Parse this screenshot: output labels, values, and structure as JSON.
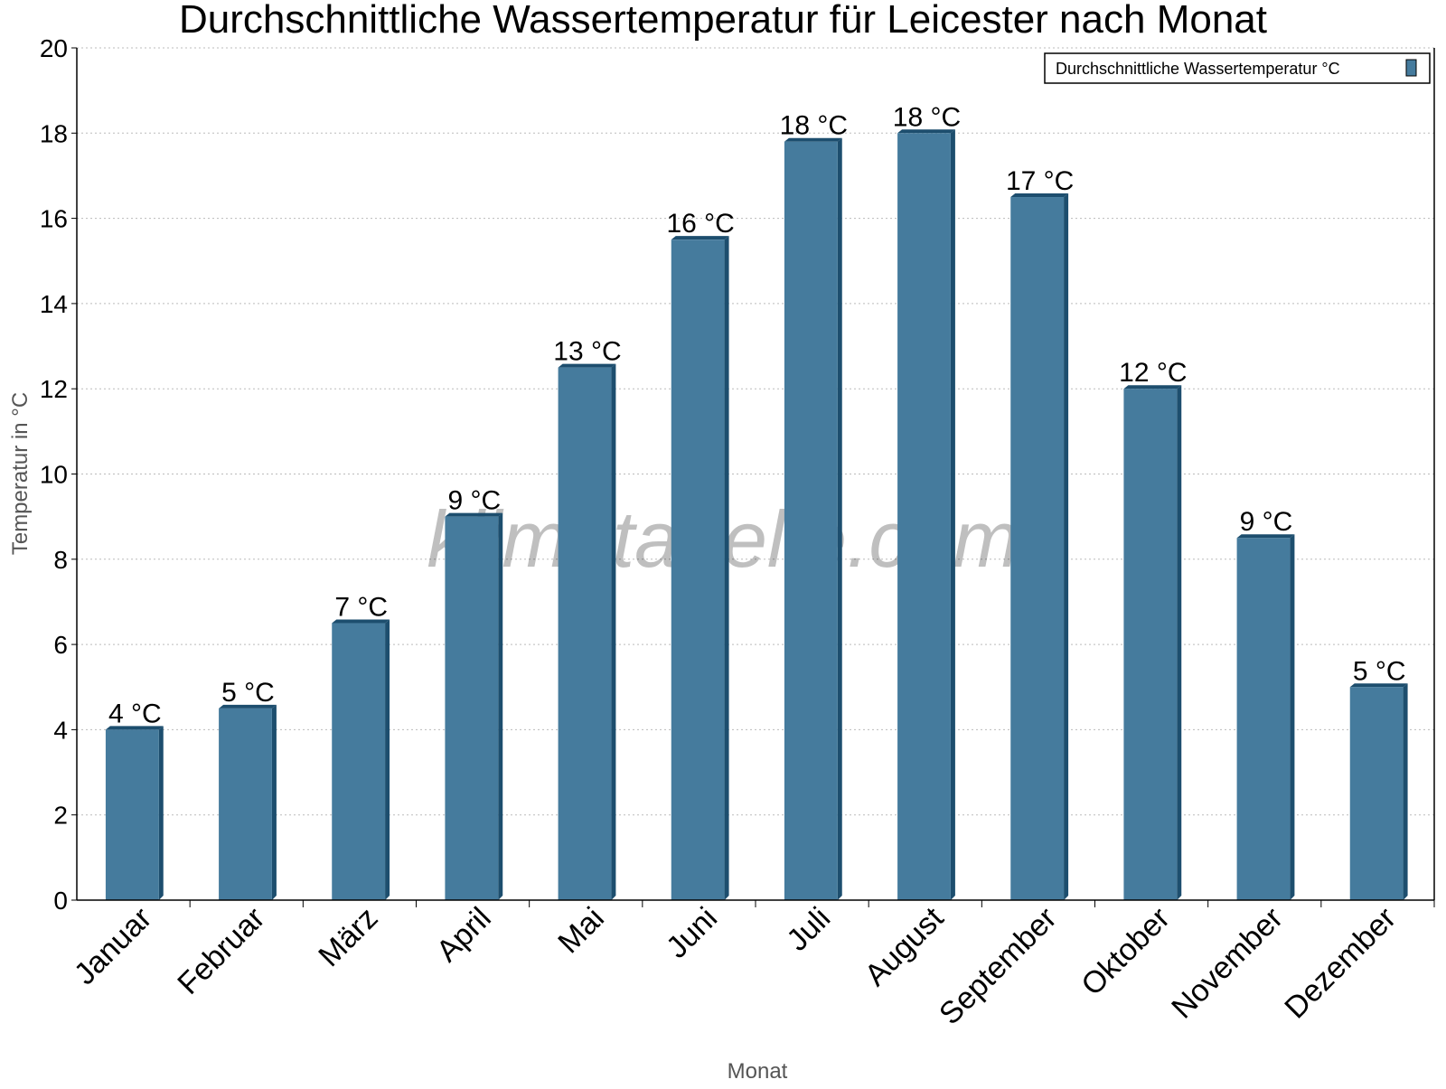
{
  "chart_data": {
    "type": "bar",
    "title": "Durchschnittliche Wassertemperatur für Leicester nach Monat",
    "xlabel": "Monat",
    "ylabel": "Temperatur in °C",
    "categories": [
      "Januar",
      "Februar",
      "März",
      "April",
      "Mai",
      "Juni",
      "Juli",
      "August",
      "September",
      "Oktober",
      "November",
      "Dezember"
    ],
    "series": [
      {
        "name": "Durchschnittliche Wassertemperatur °C",
        "values": [
          4,
          4.5,
          6.5,
          9,
          12.5,
          15.5,
          17.8,
          18,
          16.5,
          12,
          8.5,
          5
        ],
        "data_labels": [
          "4 °C",
          "5 °C",
          "7 °C",
          "9 °C",
          "13 °C",
          "16 °C",
          "18 °C",
          "18 °C",
          "17 °C",
          "12 °C",
          "9 °C",
          "5 °C"
        ],
        "color": "#457b9d",
        "side_color": "#1d4e6e"
      }
    ],
    "ylim": [
      0,
      20
    ],
    "yticks": [
      0,
      2,
      4,
      6,
      8,
      10,
      12,
      14,
      16,
      18,
      20
    ],
    "grid": "horizontal dotted",
    "legend": "top-right"
  },
  "watermark": "klimatabelle.com"
}
